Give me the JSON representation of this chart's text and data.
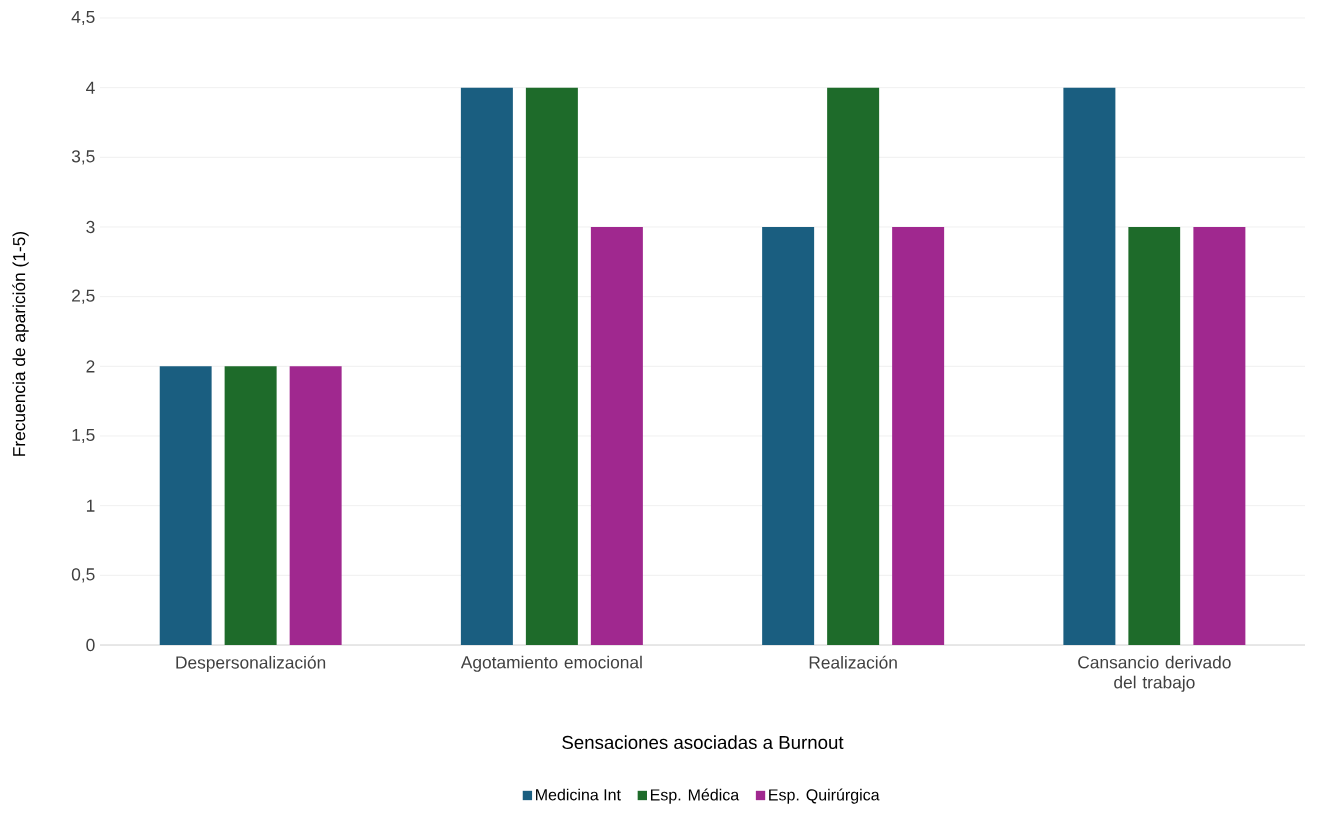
{
  "chart_data": {
    "type": "bar",
    "xlabel": "Sensaciones asociadas a Burnout",
    "ylabel": "Frecuencia de aparición (1-5)",
    "categories": [
      "Despersonalización",
      "Agotamiento emocional",
      "Realización",
      "Cansancio derivado del trabajo"
    ],
    "series": [
      {
        "name": "Medicina Int",
        "color": "#1a5e80",
        "values": [
          2,
          4,
          3,
          4
        ]
      },
      {
        "name": "Esp. Médica",
        "color": "#1e6b2a",
        "values": [
          2,
          4,
          4,
          3
        ]
      },
      {
        "name": "Esp. Quirúrgica",
        "color": "#a0288f",
        "values": [
          2,
          3,
          3,
          3
        ]
      }
    ],
    "ylim": [
      0,
      4.5
    ],
    "yticks": [
      0,
      {
        "value": 0.5,
        "label": "0,5"
      },
      1,
      {
        "value": 1.5,
        "label": "1,5"
      },
      2,
      {
        "value": 2.5,
        "label": "2,5"
      },
      3,
      {
        "value": 3.5,
        "label": "3,5"
      },
      4,
      {
        "value": 4.5,
        "label": "4,5"
      }
    ],
    "grid": "y",
    "legend": "bottom"
  }
}
